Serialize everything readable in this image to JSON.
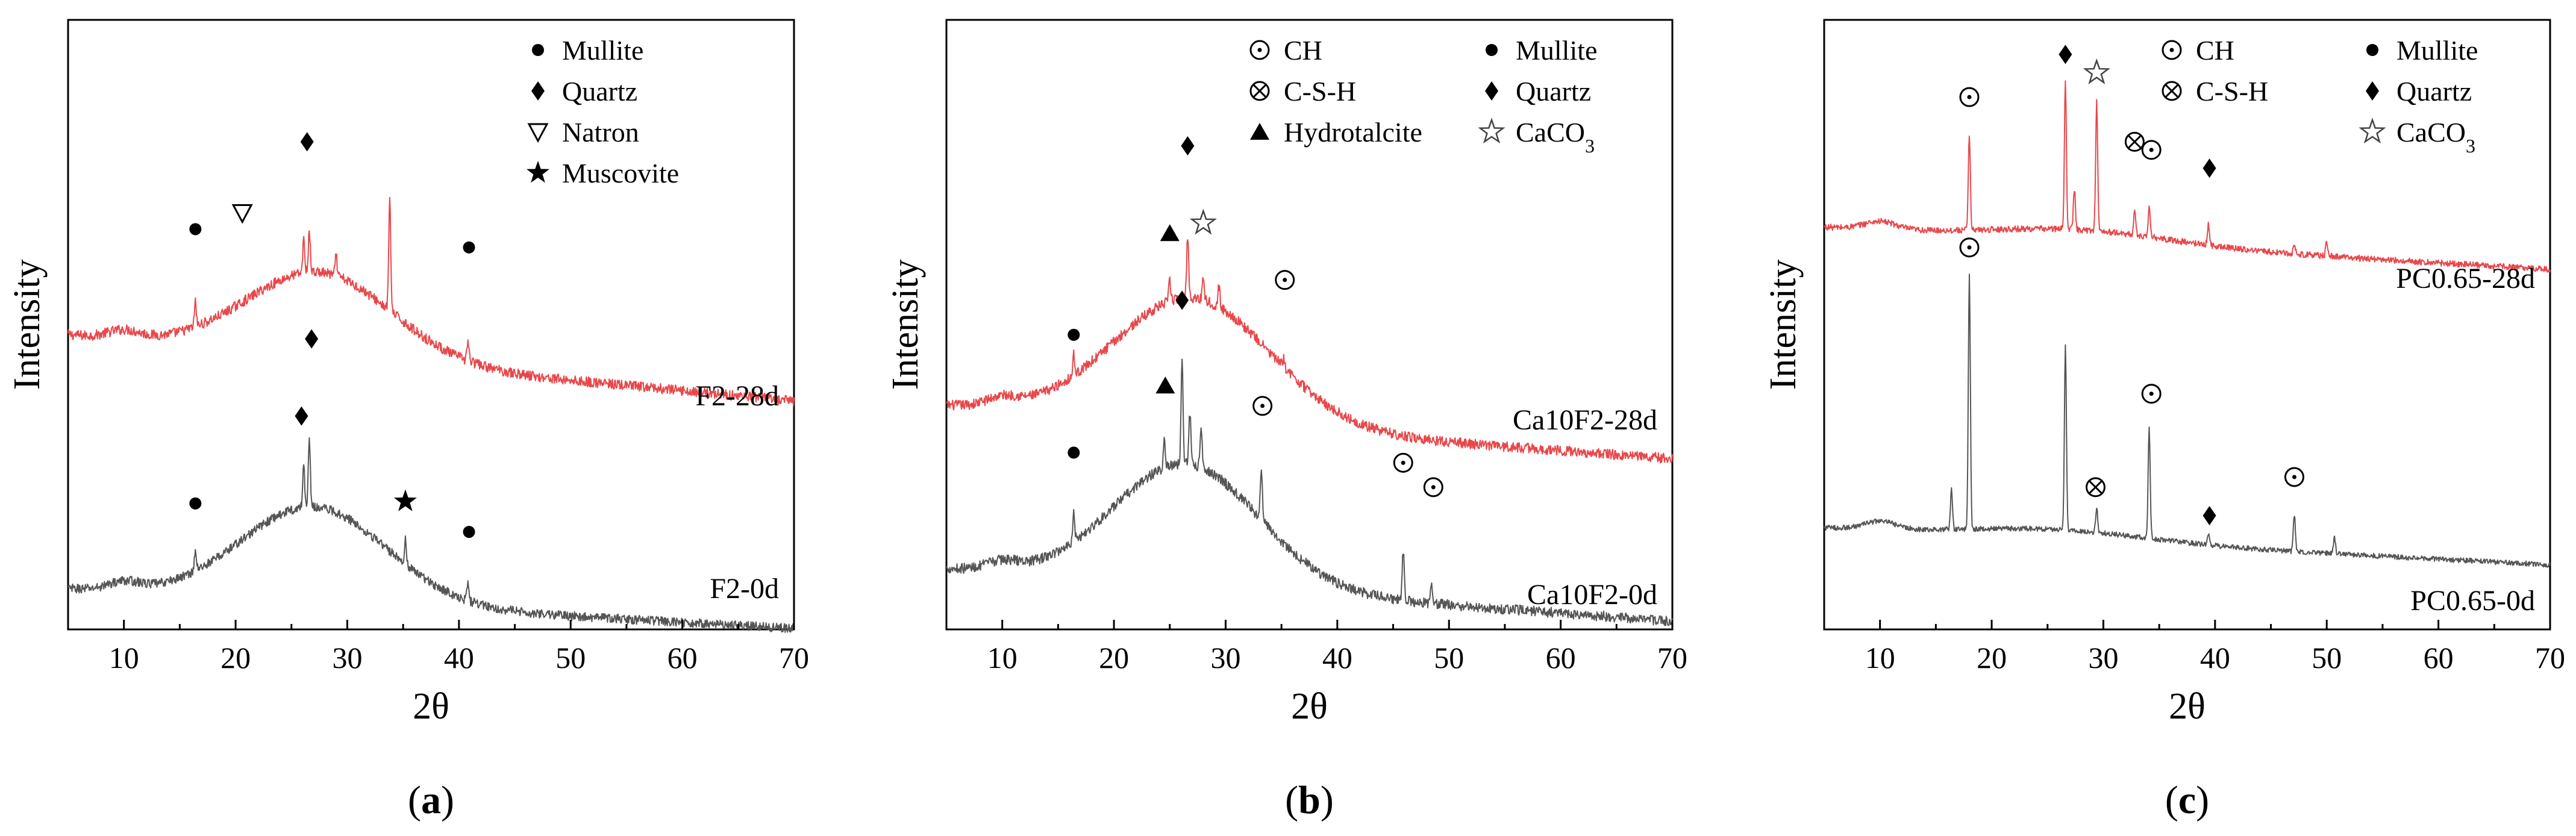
{
  "figure": {
    "panels": [
      "a",
      "b",
      "c"
    ]
  },
  "chart_data": [
    {
      "type": "line",
      "panel": "a",
      "panel_label": "a",
      "xlabel": "2θ",
      "ylabel": "Intensity",
      "xlim": [
        5,
        70
      ],
      "x_ticks": [
        10,
        20,
        30,
        40,
        50,
        60,
        70
      ],
      "x_tick_labels": [
        "10",
        "20",
        "30",
        "40",
        "50",
        "60",
        "70"
      ],
      "legend": [
        {
          "symbol": "filled-circle",
          "label": "Mullite"
        },
        {
          "symbol": "filled-diamond",
          "label": "Quartz"
        },
        {
          "symbol": "open-triangle-down",
          "label": "Natron"
        },
        {
          "symbol": "filled-star",
          "label": "Muscovite"
        }
      ],
      "series": [
        {
          "name": "F2-28d",
          "label": "F2-28d",
          "color": "#e8474a",
          "baseline": 1.45,
          "hump": {
            "center": 27.5,
            "width": 6.5,
            "height": 0.42
          },
          "slope": -0.005,
          "noise": 0.05,
          "peaks": [
            [
              16.4,
              0.12
            ],
            [
              26.1,
              0.16
            ],
            [
              26.6,
              0.2
            ],
            [
              29.0,
              0.1
            ],
            [
              33.8,
              0.55
            ],
            [
              40.8,
              0.1
            ]
          ],
          "markers": [
            {
              "symbol": "filled-circle",
              "x": 16.4,
              "y": 1.97
            },
            {
              "symbol": "open-triangle-down",
              "x": 20.6,
              "y": 2.05
            },
            {
              "symbol": "filled-diamond",
              "x": 26.4,
              "y": 2.4
            },
            {
              "symbol": "filled-circle",
              "x": 40.9,
              "y": 1.88
            }
          ]
        },
        {
          "name": "F2-0d",
          "label": "F2-0d",
          "color": "#555555",
          "baseline": 0.2,
          "hump": {
            "center": 27.0,
            "width": 6.5,
            "height": 0.47
          },
          "slope": -0.003,
          "noise": 0.045,
          "peaks": [
            [
              16.4,
              0.1
            ],
            [
              26.1,
              0.2
            ],
            [
              26.6,
              0.33
            ],
            [
              35.2,
              0.12
            ],
            [
              40.8,
              0.08
            ]
          ],
          "markers": [
            {
              "symbol": "filled-circle",
              "x": 16.4,
              "y": 0.62
            },
            {
              "symbol": "filled-diamond",
              "x": 25.9,
              "y": 1.05
            },
            {
              "symbol": "filled-diamond",
              "x": 26.8,
              "y": 1.43
            },
            {
              "symbol": "filled-star",
              "x": 35.2,
              "y": 0.63
            },
            {
              "symbol": "filled-circle",
              "x": 40.9,
              "y": 0.48
            }
          ]
        }
      ]
    },
    {
      "type": "line",
      "panel": "b",
      "panel_label": "b",
      "xlabel": "2θ",
      "ylabel": "Intensity",
      "xlim": [
        5,
        70
      ],
      "x_ticks": [
        10,
        20,
        30,
        40,
        50,
        60,
        70
      ],
      "x_tick_labels": [
        "10",
        "20",
        "30",
        "40",
        "50",
        "60",
        "70"
      ],
      "legend": [
        {
          "symbol": "open-circle-dot",
          "label": "CH"
        },
        {
          "symbol": "filled-circle",
          "label": "Mullite"
        },
        {
          "symbol": "open-circle-cross",
          "label": "C-S-H"
        },
        {
          "symbol": "filled-diamond",
          "label": "Quartz"
        },
        {
          "symbol": "filled-triangle-up",
          "label": "Hydrotalcite"
        },
        {
          "symbol": "open-star",
          "label": "CaCO",
          "subscript": "3"
        }
      ],
      "series": [
        {
          "name": "Ca10F2-28d",
          "label": "Ca10F2-28d",
          "color": "#e8474a",
          "baseline": 1.1,
          "hump": {
            "center": 27.0,
            "width": 7.0,
            "height": 0.62
          },
          "slope": -0.004,
          "noise": 0.05,
          "peaks": [
            [
              16.4,
              0.1
            ],
            [
              25.0,
              0.1
            ],
            [
              26.6,
              0.3
            ],
            [
              28.0,
              0.12
            ],
            [
              29.4,
              0.1
            ],
            [
              35.2,
              0.05
            ]
          ],
          "markers": [
            {
              "symbol": "filled-circle",
              "x": 16.4,
              "y": 1.45
            },
            {
              "symbol": "filled-triangle-up",
              "x": 25.0,
              "y": 1.95
            },
            {
              "symbol": "filled-diamond",
              "x": 26.6,
              "y": 2.38
            },
            {
              "symbol": "open-star",
              "x": 28.0,
              "y": 2.0
            },
            {
              "symbol": "open-circle-dot",
              "x": 35.3,
              "y": 1.72
            }
          ]
        },
        {
          "name": "Ca10F2-0d",
          "label": "Ca10F2-0d",
          "color": "#555555",
          "baseline": 0.3,
          "hump": {
            "center": 26.5,
            "width": 6.5,
            "height": 0.6
          },
          "slope": -0.004,
          "noise": 0.05,
          "peaks": [
            [
              16.4,
              0.15
            ],
            [
              24.5,
              0.15
            ],
            [
              26.1,
              0.5
            ],
            [
              26.8,
              0.25
            ],
            [
              27.8,
              0.2
            ],
            [
              33.2,
              0.25
            ],
            [
              45.9,
              0.25
            ],
            [
              48.4,
              0.1
            ]
          ],
          "markers": [
            {
              "symbol": "filled-circle",
              "x": 16.4,
              "y": 0.87
            },
            {
              "symbol": "filled-triangle-up",
              "x": 24.6,
              "y": 1.2
            },
            {
              "symbol": "filled-diamond",
              "x": 26.1,
              "y": 1.62
            },
            {
              "symbol": "open-circle-dot",
              "x": 33.3,
              "y": 1.1
            },
            {
              "symbol": "open-circle-dot",
              "x": 45.9,
              "y": 0.82
            },
            {
              "symbol": "open-circle-dot",
              "x": 48.6,
              "y": 0.7
            }
          ]
        }
      ]
    },
    {
      "type": "line",
      "panel": "c",
      "panel_label": "c",
      "xlabel": "2θ",
      "ylabel": "Intensity",
      "xlim": [
        5,
        70
      ],
      "x_ticks": [
        10,
        20,
        30,
        40,
        50,
        60,
        70
      ],
      "x_tick_labels": [
        "10",
        "20",
        "30",
        "40",
        "50",
        "60",
        "70"
      ],
      "legend": [
        {
          "symbol": "open-circle-dot",
          "label": "CH"
        },
        {
          "symbol": "filled-circle",
          "label": "Mullite"
        },
        {
          "symbol": "open-circle-cross",
          "label": "C-S-H"
        },
        {
          "symbol": "filled-diamond",
          "label": "Quartz"
        },
        {
          "symbol": "open-star",
          "label": "CaCO",
          "subscript": "3"
        }
      ],
      "series": [
        {
          "name": "PC0.65-28d",
          "label": "PC0.65-28d",
          "color": "#e8474a",
          "baseline": 1.98,
          "hump": {
            "center": 28.0,
            "width": 8.0,
            "height": 0.06
          },
          "slope": -0.0032,
          "noise": 0.03,
          "peaks": [
            [
              18.0,
              0.47
            ],
            [
              26.6,
              0.72
            ],
            [
              27.4,
              0.2
            ],
            [
              29.4,
              0.64
            ],
            [
              32.8,
              0.12
            ],
            [
              34.1,
              0.14
            ],
            [
              39.4,
              0.1
            ],
            [
              47.1,
              0.05
            ],
            [
              50.0,
              0.07
            ]
          ],
          "markers": [
            {
              "symbol": "filled-diamond",
              "x": 26.6,
              "y": 2.83
            },
            {
              "symbol": "open-star",
              "x": 29.4,
              "y": 2.74
            },
            {
              "symbol": "open-circle-dot",
              "x": 18.0,
              "y": 2.62
            },
            {
              "symbol": "open-circle-cross",
              "x": 32.8,
              "y": 2.4
            },
            {
              "symbol": "open-circle-dot",
              "x": 34.3,
              "y": 2.36
            },
            {
              "symbol": "filled-diamond",
              "x": 39.5,
              "y": 2.27
            }
          ]
        },
        {
          "name": "PC0.65-0d",
          "label": "PC0.65-0d",
          "color": "#555555",
          "baseline": 0.5,
          "hump": {
            "center": 26.0,
            "width": 8.0,
            "height": 0.05
          },
          "slope": -0.0028,
          "noise": 0.025,
          "peaks": [
            [
              16.4,
              0.2
            ],
            [
              18.0,
              1.25
            ],
            [
              26.6,
              0.9
            ],
            [
              29.4,
              0.12
            ],
            [
              34.1,
              0.55
            ],
            [
              39.4,
              0.06
            ],
            [
              47.1,
              0.18
            ],
            [
              50.7,
              0.08
            ]
          ],
          "markers": [
            {
              "symbol": "open-circle-dot",
              "x": 18.0,
              "y": 1.88
            },
            {
              "symbol": "open-circle-dot",
              "x": 34.3,
              "y": 1.16
            },
            {
              "symbol": "open-circle-cross",
              "x": 29.3,
              "y": 0.7
            },
            {
              "symbol": "filled-diamond",
              "x": 39.5,
              "y": 0.56
            },
            {
              "symbol": "open-circle-dot",
              "x": 47.1,
              "y": 0.75
            }
          ]
        }
      ]
    }
  ]
}
